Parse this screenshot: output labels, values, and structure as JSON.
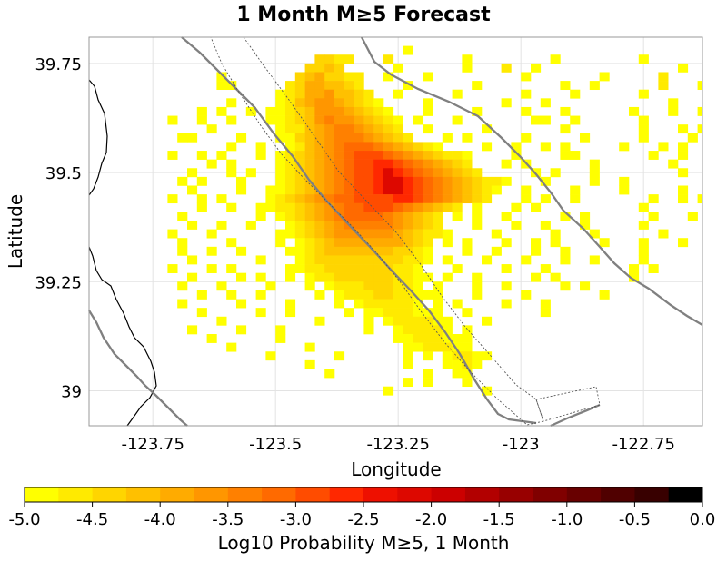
{
  "chart_data": {
    "type": "heatmap",
    "title": "1 Month M≥5 Forecast",
    "xlabel": "Longitude",
    "ylabel": "Latitude",
    "xlim": [
      -123.88,
      -122.63
    ],
    "ylim": [
      38.92,
      39.81
    ],
    "x_ticks": [
      {
        "value": -123.75,
        "label": "-123.75"
      },
      {
        "value": -123.5,
        "label": "-123.5"
      },
      {
        "value": -123.25,
        "label": "-123.25"
      },
      {
        "value": -123.0,
        "label": "-123"
      },
      {
        "value": -122.75,
        "label": "-122.75"
      }
    ],
    "y_ticks": [
      {
        "value": 39.75,
        "label": "39.75"
      },
      {
        "value": 39.5,
        "label": "39.5"
      },
      {
        "value": 39.25,
        "label": "39.25"
      },
      {
        "value": 39.0,
        "label": "39"
      }
    ],
    "grid": true,
    "cell_size_deg": 0.02,
    "colorbar": {
      "label": "Log10 Probability M≥5, 1 Month",
      "range": [
        -5.0,
        0.0
      ],
      "colors": [
        "#ffff00",
        "#ffea00",
        "#ffd500",
        "#ffc000",
        "#ffab00",
        "#ff9600",
        "#ff8000",
        "#ff6a00",
        "#ff4c00",
        "#ff2800",
        "#ee1000",
        "#dd0800",
        "#cc0000",
        "#b20000",
        "#980000",
        "#800000",
        "#680000",
        "#500000",
        "#380000",
        "#000000"
      ],
      "ticks": [
        {
          "value": -5.0,
          "label": "-5.0"
        },
        {
          "value": -4.5,
          "label": "-4.5"
        },
        {
          "value": -4.0,
          "label": "-4.0"
        },
        {
          "value": -3.5,
          "label": "-3.5"
        },
        {
          "value": -3.0,
          "label": "-3.0"
        },
        {
          "value": -2.5,
          "label": "-2.5"
        },
        {
          "value": -2.0,
          "label": "-2.0"
        },
        {
          "value": -1.5,
          "label": "-1.5"
        },
        {
          "value": -1.0,
          "label": "-1.0"
        },
        {
          "value": -0.5,
          "label": "-0.5"
        },
        {
          "value": 0.0,
          "label": "0.0"
        }
      ]
    },
    "grid_values": {
      "lon_start": -123.72,
      "lat_start": 39.79,
      "step": 0.02,
      "rows": [
        "......................................................................",
        "........................1............................................",
        "...............3322...2.......1........1........1.....................",
        "..............3343.....1......1...2..1..............1.................",
        ".....1.......3453322..1...1.........1.......1.....2.........1.........",
        ".....11.....23554432....1......1........1..1......2...1...............",
        "...........1235564432..1.....1......1....1......1.....................",
        "......1....12456654321....1.......1...1............1...1.1............",
        "...1.1..1.1123466654321...1....1....1...1......1...1..1...............",
        "1..1..1...11234676654321.1...1.......11..1......1.....................",
        "....1......1224567765432..1.....1.......1.......1...1.1.1.............",
        ".11....1...11345677765432...1.1.....1.....1.....1....1................",
        "......1..1..1245678887654321....1..1..1.1.....1...1.1.................",
        "1..1.1...1.12345678999876543221....1....11.......1..1..1..............",
        "....1.1....1234567899AA98765432...1.1......1.......1..................",
        "..1...1.1..1234567899ACA98765432.....1.1...1........1.................",
        ".1.1...1...1234567899ACCA9876543221...1....1..1........1..............",
        "..1....1..11234567899ACCA987654321..1....1....1.....1.................",
        "1..1.1....1234567889999AA98765432...1.1..1.......1..1.1...............",
        "...1..1..112234567889998765432.1...1.1..........1.....................",
        ".1.......1.12345678888765432.1.1..1.....1.1......1...1.1..............",
        "..1..1..1...1234567777765432...1...1..1...1.....1.....................",
        "1...1......112345666666543221....1.....1...1......1...................",
        ".1....1....1.12345555555432.1.1...1..1.1....1...1...1.................",
        ".1..1..1....112344444443321...1..1...1..1.......1.....................",
        "..1......1...12333333333221.1...1...1...1..1....1.....................",
        "1...1.1.....11223333333221...1....1...1........1.1....................",
        "..1....1.1..1.1223333332211.1..1.....1.1.......1......................",
        ".1...1....1...1.1222333221.1...1..1.....1.1...........................",
        "...1..1..1.....1.12223322111...1....1.......1.........................",
        ".1.....1....1....1.1222221.1.1....1...1...............................",
        "...1.....1..1.....1.11222111..1.......1...............................",
        ".....1.........1....1.1222211...1.....................................",
        "..1....1...1........1..122221.1.......................................",
        "....1......1...........11222111.......................................",
        "......1.......1.........1122211.......................................",
        "..........1......1......1.1.12211.....................................",
        "..............1.........1...1121......................................",
        "................1.........1..11.......................................",
        "........................1.1...1.......................................",
        "......................1.........1.....................................",
        "......................................................................",
        "......................................................................",
        "......................................................................",
        "......................................................................"
      ]
    }
  }
}
